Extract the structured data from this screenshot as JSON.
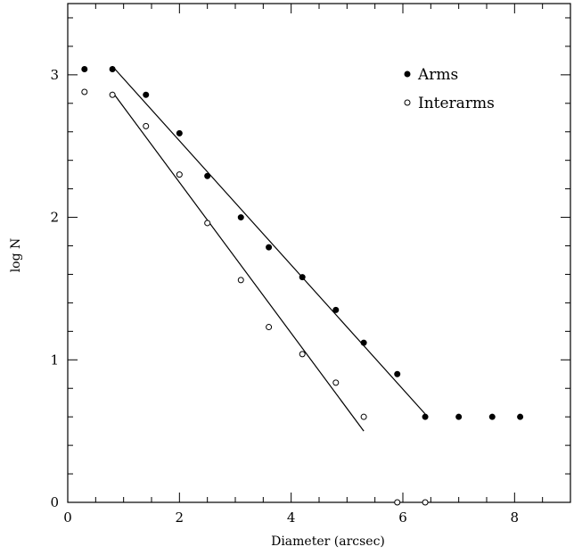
{
  "chart_data": {
    "type": "scatter",
    "title": "",
    "xlabel": "Diameter (arcsec)",
    "ylabel": "log N",
    "xlim": [
      0,
      9
    ],
    "ylim": [
      0,
      3.5
    ],
    "x_ticks": [
      0,
      2,
      4,
      6,
      8
    ],
    "y_ticks": [
      0,
      1,
      2,
      3
    ],
    "x_minor_step": 0.5,
    "y_minor_step": 0.2,
    "grid": false,
    "legend_position": "top-right",
    "colors": {
      "axes": "#000000",
      "arms": "#000000",
      "interarms_fill": "#ffffff"
    },
    "series": [
      {
        "name": "Arms",
        "marker": "filled-circle",
        "x": [
          0.3,
          0.8,
          1.4,
          2.0,
          2.5,
          3.1,
          3.6,
          4.2,
          4.8,
          5.3,
          5.9,
          6.4,
          7.0,
          7.6,
          8.1
        ],
        "y": [
          3.04,
          3.04,
          2.86,
          2.59,
          2.29,
          2.0,
          1.79,
          1.58,
          1.35,
          1.12,
          0.9,
          0.6,
          0.6,
          0.6,
          0.6
        ]
      },
      {
        "name": "Interarms",
        "marker": "open-circle",
        "x": [
          0.3,
          0.8,
          1.4,
          2.0,
          2.5,
          3.1,
          3.6,
          4.2,
          4.8,
          5.3,
          5.9,
          6.4
        ],
        "y": [
          2.88,
          2.86,
          2.64,
          2.3,
          1.96,
          1.56,
          1.23,
          1.04,
          0.84,
          0.6,
          0.0,
          0.0
        ]
      }
    ],
    "fit_lines": [
      {
        "series": "Arms",
        "x": [
          0.8,
          6.4
        ],
        "y": [
          3.06,
          0.62
        ]
      },
      {
        "series": "Interarms",
        "x": [
          0.8,
          5.3
        ],
        "y": [
          2.88,
          0.5
        ]
      }
    ]
  }
}
